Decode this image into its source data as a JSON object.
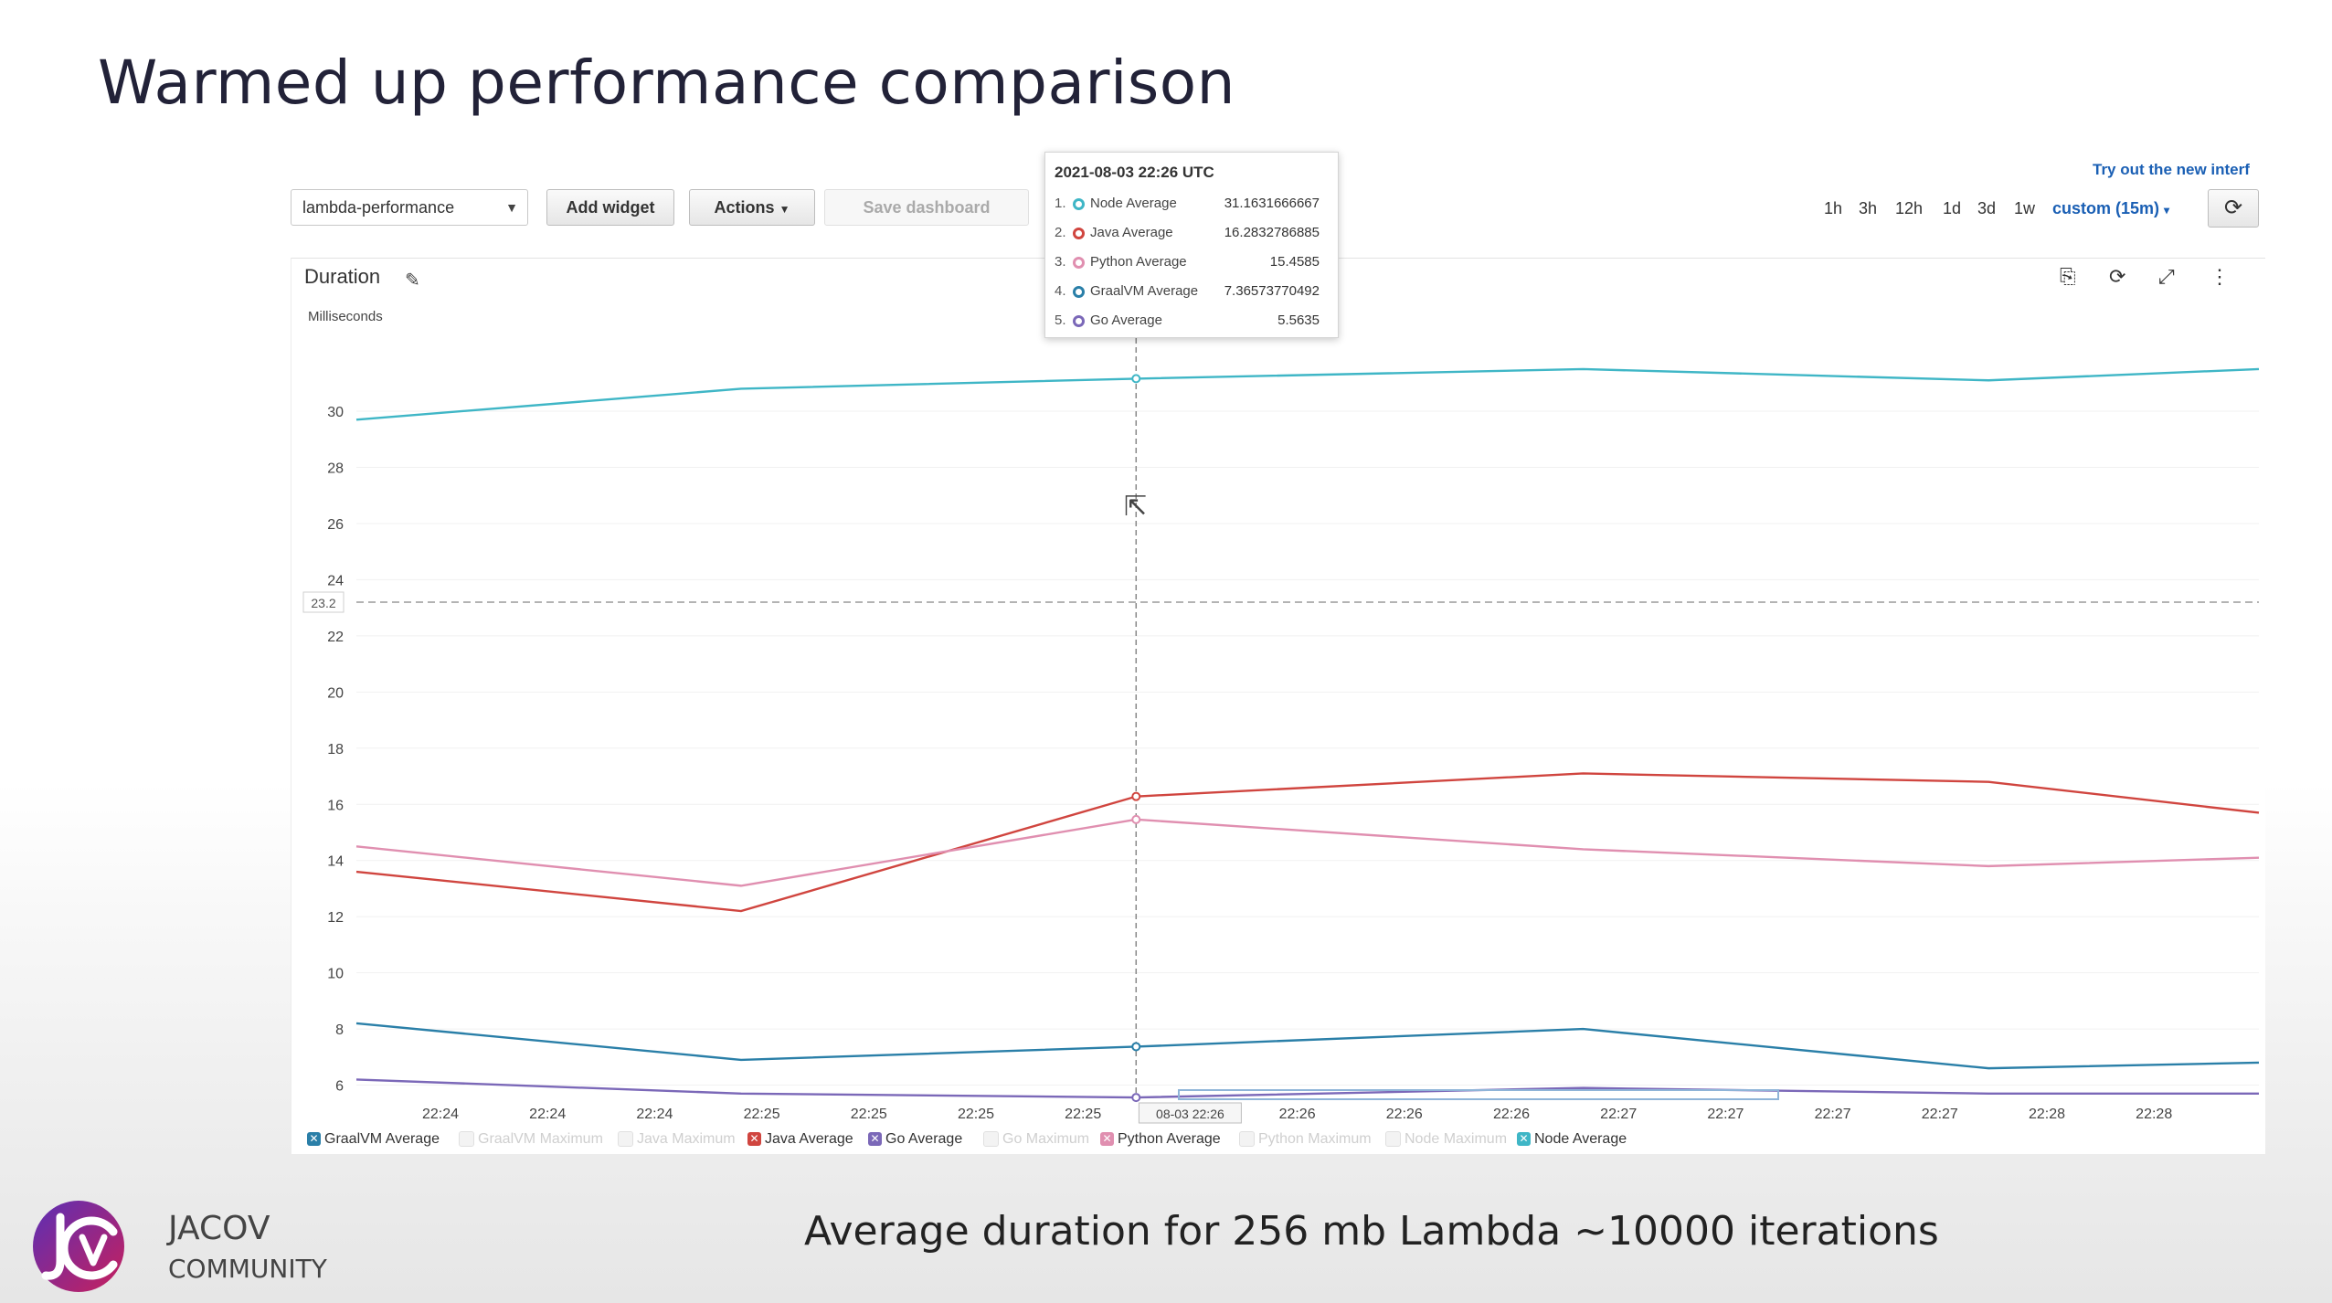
{
  "slide": {
    "title": "Warmed up performance comparison",
    "caption": "Average duration for 256 mb Lambda ~10000 iterations",
    "brand_line1": "JACOV",
    "brand_line2": "COMMUNITY"
  },
  "toolbar": {
    "dashboard_select": "lambda-performance",
    "add_widget": "Add widget",
    "actions": "Actions",
    "save_dashboard": "Save dashboard",
    "try_new": "Try out the new interf",
    "ranges": [
      "1h",
      "3h",
      "12h",
      "1d",
      "3d",
      "1w"
    ],
    "custom_range": "custom (15m)"
  },
  "widget": {
    "title": "Duration",
    "units": "Milliseconds"
  },
  "icons": [
    "edit-icon",
    "copy-icon",
    "refresh-icon",
    "fullscreen-icon",
    "more-icon",
    "cursor-icon",
    "logo-icon"
  ],
  "tooltip": {
    "time": "2021-08-03 22:26 UTC",
    "rows": [
      {
        "idx": "1.",
        "name": "Node Average",
        "value": "31.1631666667",
        "color": "#3fb6c6"
      },
      {
        "idx": "2.",
        "name": "Java Average",
        "value": "16.2832786885",
        "color": "#d0453f"
      },
      {
        "idx": "3.",
        "name": "Python Average",
        "value": "15.4585",
        "color": "#e08fb0"
      },
      {
        "idx": "4.",
        "name": "GraalVM Average",
        "value": "7.36573770492",
        "color": "#2a7fa8"
      },
      {
        "idx": "5.",
        "name": "Go Average",
        "value": "5.5635",
        "color": "#7b68b8"
      }
    ]
  },
  "legend": [
    {
      "label": "GraalVM Average",
      "on": true,
      "color": "#2a7fa8"
    },
    {
      "label": "GraalVM Maximum",
      "on": false,
      "color": "#cccccc"
    },
    {
      "label": "Java Maximum",
      "on": false,
      "color": "#cccccc"
    },
    {
      "label": "Java Average",
      "on": true,
      "color": "#d0453f"
    },
    {
      "label": "Go Average",
      "on": true,
      "color": "#7b68b8"
    },
    {
      "label": "Go Maximum",
      "on": false,
      "color": "#cccccc"
    },
    {
      "label": "Python Average",
      "on": true,
      "color": "#e08fb0"
    },
    {
      "label": "Python Maximum",
      "on": false,
      "color": "#cccccc"
    },
    {
      "label": "Node Maximum",
      "on": false,
      "color": "#cccccc"
    },
    {
      "label": "Node Average",
      "on": true,
      "color": "#3fb6c6"
    }
  ],
  "chart_data": {
    "type": "line",
    "ylabel": "Milliseconds",
    "ylim": [
      5.4,
      32.8
    ],
    "yticks": [
      6,
      8,
      10,
      12,
      14,
      16,
      18,
      20,
      22,
      24,
      26,
      28,
      30
    ],
    "threshold": {
      "value": 23.2,
      "label": "23.2"
    },
    "x_labels": [
      "22:24",
      "22:24",
      "22:24",
      "22:25",
      "22:25",
      "22:25",
      "22:25",
      "08-03 22:26",
      "22:26",
      "22:26",
      "22:26",
      "22:27",
      "22:27",
      "22:27",
      "22:27",
      "22:28",
      "22:28"
    ],
    "highlight_label_index": 7,
    "x_range": [
      0,
      18.3
    ],
    "hover_x": 7.5,
    "grid": true,
    "series": [
      {
        "name": "Node Average",
        "color": "#3fb6c6",
        "x": [
          0,
          3.7,
          7.5,
          11.8,
          15.7,
          18.3
        ],
        "values": [
          29.7,
          30.8,
          31.16,
          31.5,
          31.1,
          31.5
        ]
      },
      {
        "name": "Java Average",
        "color": "#d0453f",
        "x": [
          0,
          3.7,
          7.5,
          11.8,
          15.7,
          18.3
        ],
        "values": [
          13.6,
          12.2,
          16.28,
          17.1,
          16.8,
          15.7
        ]
      },
      {
        "name": "Python Average",
        "color": "#e08fb0",
        "x": [
          0,
          3.7,
          7.5,
          11.8,
          15.7,
          18.3
        ],
        "values": [
          14.5,
          13.1,
          15.46,
          14.4,
          13.8,
          14.1
        ]
      },
      {
        "name": "GraalVM Average",
        "color": "#2a7fa8",
        "x": [
          0,
          3.7,
          7.5,
          11.8,
          15.7,
          18.3
        ],
        "values": [
          8.2,
          6.9,
          7.37,
          8.0,
          6.6,
          6.8
        ]
      },
      {
        "name": "Go Average",
        "color": "#7b68b8",
        "x": [
          0,
          3.7,
          7.5,
          11.8,
          15.7,
          18.3
        ],
        "values": [
          6.2,
          5.7,
          5.56,
          5.9,
          5.7,
          5.7
        ]
      }
    ]
  }
}
